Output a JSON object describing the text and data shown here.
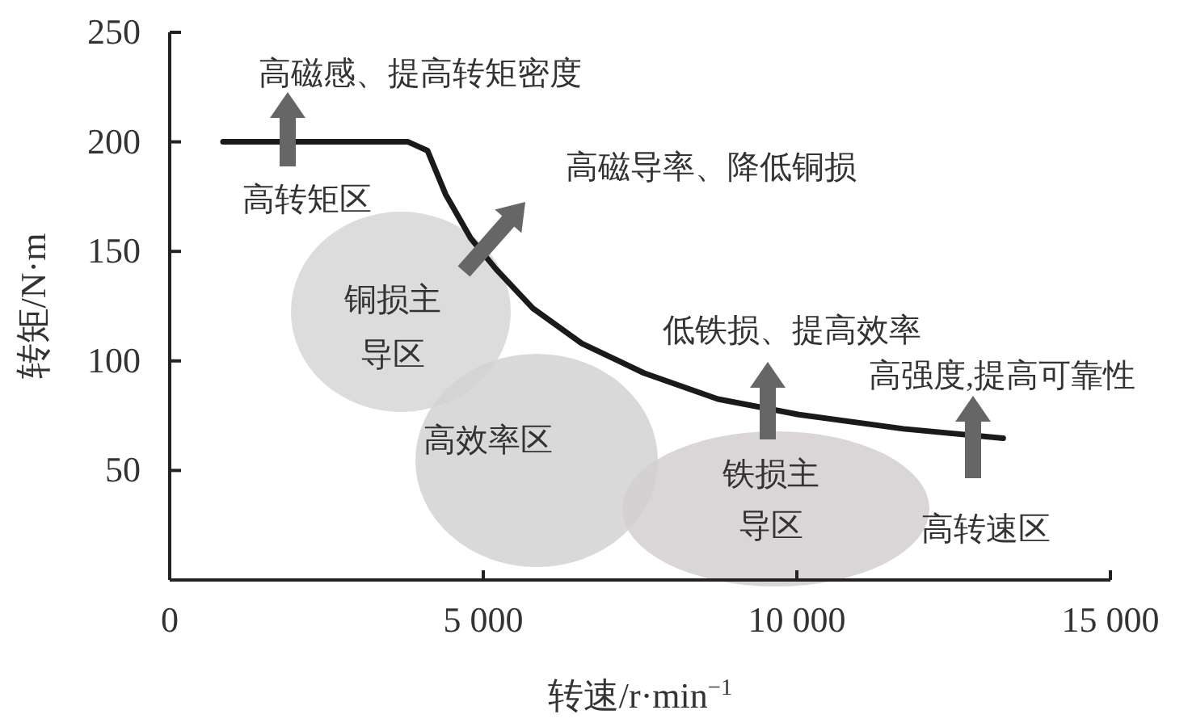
{
  "chart_data": {
    "type": "line",
    "xlabel": "转速/r·min$^{−1}$",
    "ylabel": "转矩/N·m",
    "x": [
      850,
      3800,
      4110,
      4400,
      4800,
      5200,
      5790,
      6570,
      7560,
      8740,
      10030,
      11700,
      13290
    ],
    "series": [
      {
        "color": "#1a1a1a",
        "values": [
          200,
          200,
          196,
          176,
          156,
          142,
          124,
          108,
          94.5,
          82.6,
          75.5,
          69,
          64.7
        ]
      }
    ],
    "xlim": [
      0,
      15000
    ],
    "ylim": [
      0,
      250
    ],
    "xticks": [
      0,
      {
        "value": 5000,
        "label": "5 000"
      },
      {
        "value": 10000,
        "label": "10 000"
      },
      {
        "value": 15000,
        "label": "15 000"
      }
    ],
    "yticks": [
      50,
      100,
      150,
      200,
      250
    ],
    "grid": false,
    "marker": "none",
    "line_style": "solid",
    "annotations": [
      "高磁感、提高转矩密度",
      "高转矩区",
      "高磁导率、降低铜损",
      "铜损主",
      "导区",
      "高效率区",
      "低铁损、提高效率",
      "高强度,提高可靠性",
      "铁损主",
      "导区",
      "高转速区"
    ]
  }
}
